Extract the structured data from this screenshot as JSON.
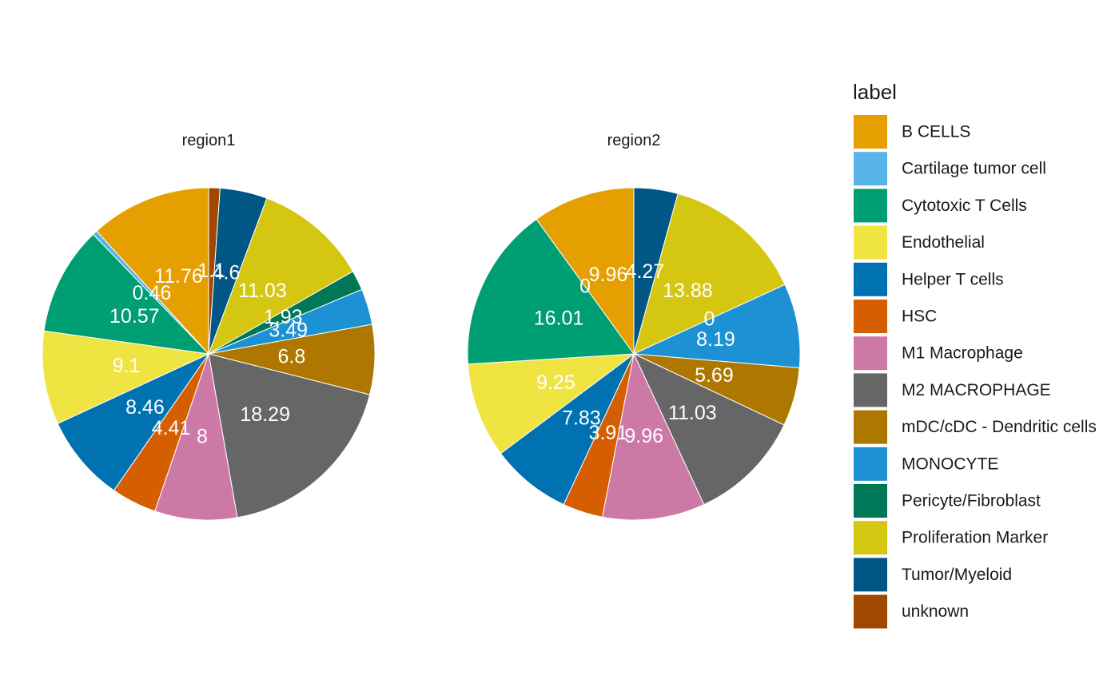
{
  "chart_data": {
    "type": "pie",
    "legend": {
      "title": "label",
      "placement": "right",
      "entries": [
        {
          "name": "B CELLS",
          "color": "#E69F00"
        },
        {
          "name": "Cartilage tumor cell",
          "color": "#56B4E9"
        },
        {
          "name": "Cytotoxic T Cells",
          "color": "#009E73"
        },
        {
          "name": "Endothelial",
          "color": "#F0E442"
        },
        {
          "name": "Helper T cells",
          "color": "#0072B2"
        },
        {
          "name": "HSC",
          "color": "#D55E00"
        },
        {
          "name": "M1 Macrophage",
          "color": "#CC79A7"
        },
        {
          "name": "M2 MACROPHAGE",
          "color": "#666666"
        },
        {
          "name": "mDC/cDC - Dendritic cells",
          "color": "#AD7700"
        },
        {
          "name": "MONOCYTE",
          "color": "#1C91D4"
        },
        {
          "name": "Pericyte/Fibroblast",
          "color": "#007756"
        },
        {
          "name": "Proliferation Marker",
          "color": "#D5C711"
        },
        {
          "name": "Tumor/Myeloid",
          "color": "#005685"
        },
        {
          "name": "unknown",
          "color": "#A04700"
        }
      ]
    },
    "facets": [
      {
        "title": "region1",
        "slices": [
          {
            "name": "unknown",
            "value": 1.1,
            "label": "1.1"
          },
          {
            "name": "Tumor/Myeloid",
            "value": 4.6,
            "label": "4.6"
          },
          {
            "name": "Proliferation Marker",
            "value": 11.03,
            "label": "11.03"
          },
          {
            "name": "Pericyte/Fibroblast",
            "value": 1.93,
            "label": "1.93"
          },
          {
            "name": "MONOCYTE",
            "value": 3.49,
            "label": "3.49"
          },
          {
            "name": "mDC/cDC - Dendritic cells",
            "value": 6.8,
            "label": "6.8"
          },
          {
            "name": "M2 MACROPHAGE",
            "value": 18.29,
            "label": "18.29"
          },
          {
            "name": "M1 Macrophage",
            "value": 8,
            "label": "8"
          },
          {
            "name": "HSC",
            "value": 4.41,
            "label": "4.41"
          },
          {
            "name": "Helper T cells",
            "value": 8.46,
            "label": "8.46"
          },
          {
            "name": "Endothelial",
            "value": 9.1,
            "label": "9.1"
          },
          {
            "name": "Cytotoxic T Cells",
            "value": 10.57,
            "label": "10.57"
          },
          {
            "name": "Cartilage tumor cell",
            "value": 0.46,
            "label": "0.46"
          },
          {
            "name": "B CELLS",
            "value": 11.76,
            "label": "11.76"
          }
        ]
      },
      {
        "title": "region2",
        "slices": [
          {
            "name": "Tumor/Myeloid",
            "value": 4.27,
            "label": "4.27"
          },
          {
            "name": "Proliferation Marker",
            "value": 13.88,
            "label": "13.88"
          },
          {
            "name": "Pericyte/Fibroblast",
            "value": 0,
            "label": "0"
          },
          {
            "name": "MONOCYTE",
            "value": 8.19,
            "label": "8.19"
          },
          {
            "name": "mDC/cDC - Dendritic cells",
            "value": 5.69,
            "label": "5.69"
          },
          {
            "name": "M2 MACROPHAGE",
            "value": 11.03,
            "label": "11.03"
          },
          {
            "name": "M1 Macrophage",
            "value": 9.96,
            "label": "9.96"
          },
          {
            "name": "HSC",
            "value": 3.91,
            "label": "3.91"
          },
          {
            "name": "Helper T cells",
            "value": 7.83,
            "label": "7.83"
          },
          {
            "name": "Endothelial",
            "value": 9.25,
            "label": "9.25"
          },
          {
            "name": "Cytotoxic T Cells",
            "value": 16.01,
            "label": "16.01"
          },
          {
            "name": "Cartilage tumor cell",
            "value": 0,
            "label": "0"
          },
          {
            "name": "B CELLS",
            "value": 9.96,
            "label": "9.96"
          }
        ]
      }
    ]
  }
}
